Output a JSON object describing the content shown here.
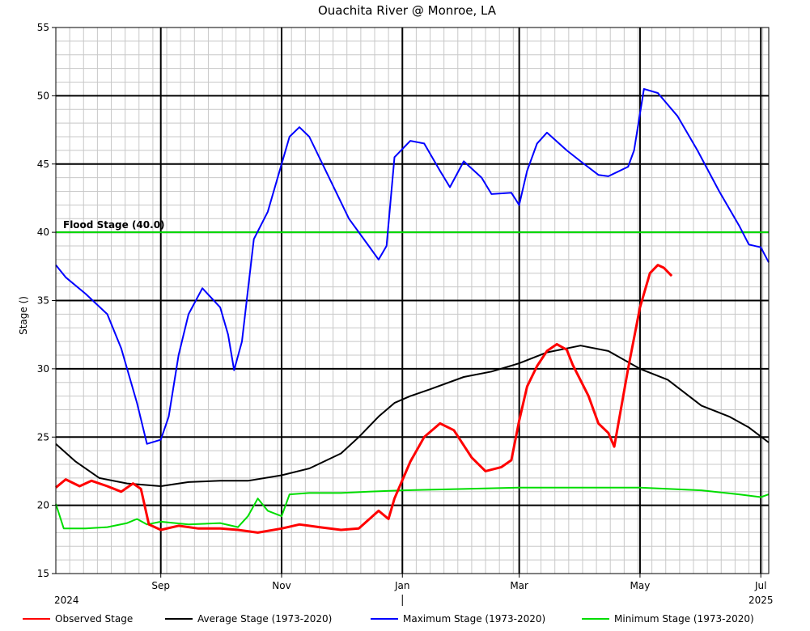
{
  "chart_data": {
    "type": "line",
    "title": "Ouachita River @ Monroe, LA",
    "ylabel": "Stage ()",
    "ylim": [
      15,
      55
    ],
    "yticks": [
      15,
      20,
      25,
      30,
      35,
      40,
      45,
      50,
      55
    ],
    "xlim": [
      "2024-07-10",
      "2025-07-05"
    ],
    "xticks": [
      {
        "date": "2024-09-01",
        "label": "Sep"
      },
      {
        "date": "2024-11-01",
        "label": "Nov"
      },
      {
        "date": "2025-01-01",
        "label": "Jan"
      },
      {
        "date": "2025-03-01",
        "label": "Mar"
      },
      {
        "date": "2025-05-01",
        "label": "May"
      },
      {
        "date": "2025-07-01",
        "label": "Jul"
      }
    ],
    "year_labels": [
      {
        "date": "2024-07-10",
        "label": "2024"
      },
      {
        "date": "2025-07-01",
        "label": "2025"
      }
    ],
    "reference_lines": [
      {
        "label": "Flood Stage (40.0)",
        "value": 40.0,
        "color": "#00dd00"
      }
    ],
    "series": [
      {
        "name": "Observed Stage",
        "color": "#ff0000",
        "points": [
          [
            "2024-07-10",
            21.3
          ],
          [
            "2024-07-15",
            21.9
          ],
          [
            "2024-07-22",
            21.4
          ],
          [
            "2024-07-28",
            21.8
          ],
          [
            "2024-08-05",
            21.4
          ],
          [
            "2024-08-12",
            21.0
          ],
          [
            "2024-08-18",
            21.6
          ],
          [
            "2024-08-22",
            21.2
          ],
          [
            "2024-08-26",
            18.6
          ],
          [
            "2024-09-01",
            18.2
          ],
          [
            "2024-09-10",
            18.5
          ],
          [
            "2024-09-20",
            18.3
          ],
          [
            "2024-10-01",
            18.3
          ],
          [
            "2024-10-10",
            18.2
          ],
          [
            "2024-10-20",
            18.0
          ],
          [
            "2024-11-01",
            18.3
          ],
          [
            "2024-11-10",
            18.6
          ],
          [
            "2024-11-20",
            18.4
          ],
          [
            "2024-12-01",
            18.2
          ],
          [
            "2024-12-10",
            18.3
          ],
          [
            "2024-12-20",
            19.6
          ],
          [
            "2024-12-25",
            19.0
          ],
          [
            "2024-12-28",
            20.5
          ],
          [
            "2025-01-05",
            23.2
          ],
          [
            "2025-01-12",
            25.0
          ],
          [
            "2025-01-20",
            26.0
          ],
          [
            "2025-01-27",
            25.5
          ],
          [
            "2025-02-05",
            23.5
          ],
          [
            "2025-02-12",
            22.5
          ],
          [
            "2025-02-20",
            22.8
          ],
          [
            "2025-02-25",
            23.3
          ],
          [
            "2025-03-01",
            26.2
          ],
          [
            "2025-03-05",
            28.7
          ],
          [
            "2025-03-10",
            30.2
          ],
          [
            "2025-03-15",
            31.3
          ],
          [
            "2025-03-20",
            31.8
          ],
          [
            "2025-03-25",
            31.4
          ],
          [
            "2025-03-28",
            30.3
          ],
          [
            "2025-04-05",
            28.0
          ],
          [
            "2025-04-10",
            26.0
          ],
          [
            "2025-04-15",
            25.3
          ],
          [
            "2025-04-18",
            24.3
          ],
          [
            "2025-04-25",
            30.0
          ],
          [
            "2025-05-01",
            34.5
          ],
          [
            "2025-05-06",
            37.0
          ],
          [
            "2025-05-10",
            37.6
          ],
          [
            "2025-05-13",
            37.4
          ],
          [
            "2025-05-17",
            36.8
          ]
        ]
      },
      {
        "name": "Average Stage (1973-2020)",
        "color": "#000000",
        "points": [
          [
            "2024-07-10",
            24.5
          ],
          [
            "2024-07-20",
            23.2
          ],
          [
            "2024-08-01",
            22.0
          ],
          [
            "2024-08-15",
            21.6
          ],
          [
            "2024-09-01",
            21.4
          ],
          [
            "2024-09-15",
            21.7
          ],
          [
            "2024-10-01",
            21.8
          ],
          [
            "2024-10-15",
            21.8
          ],
          [
            "2024-11-01",
            22.2
          ],
          [
            "2024-11-15",
            22.7
          ],
          [
            "2024-12-01",
            23.8
          ],
          [
            "2024-12-10",
            25.0
          ],
          [
            "2024-12-20",
            26.5
          ],
          [
            "2024-12-28",
            27.5
          ],
          [
            "2025-01-05",
            28.0
          ],
          [
            "2025-01-15",
            28.5
          ],
          [
            "2025-02-01",
            29.4
          ],
          [
            "2025-02-15",
            29.8
          ],
          [
            "2025-03-01",
            30.4
          ],
          [
            "2025-03-15",
            31.2
          ],
          [
            "2025-04-01",
            31.7
          ],
          [
            "2025-04-15",
            31.3
          ],
          [
            "2025-05-01",
            30.0
          ],
          [
            "2025-05-15",
            29.2
          ],
          [
            "2025-06-01",
            27.3
          ],
          [
            "2025-06-15",
            26.5
          ],
          [
            "2025-06-25",
            25.7
          ],
          [
            "2025-07-05",
            24.6
          ]
        ]
      },
      {
        "name": "Maximum Stage (1973-2020)",
        "color": "#0000ff",
        "points": [
          [
            "2024-07-10",
            37.6
          ],
          [
            "2024-07-15",
            36.7
          ],
          [
            "2024-07-25",
            35.5
          ],
          [
            "2024-08-05",
            34.0
          ],
          [
            "2024-08-12",
            31.5
          ],
          [
            "2024-08-20",
            27.5
          ],
          [
            "2024-08-25",
            24.5
          ],
          [
            "2024-09-01",
            24.8
          ],
          [
            "2024-09-05",
            26.5
          ],
          [
            "2024-09-10",
            31.0
          ],
          [
            "2024-09-15",
            34.0
          ],
          [
            "2024-09-22",
            35.9
          ],
          [
            "2024-10-01",
            34.5
          ],
          [
            "2024-10-05",
            32.5
          ],
          [
            "2024-10-08",
            29.9
          ],
          [
            "2024-10-12",
            32.0
          ],
          [
            "2024-10-18",
            39.5
          ],
          [
            "2024-10-25",
            41.5
          ],
          [
            "2024-11-01",
            45.0
          ],
          [
            "2024-11-05",
            47.0
          ],
          [
            "2024-11-10",
            47.7
          ],
          [
            "2024-11-15",
            47.0
          ],
          [
            "2024-11-25",
            44.0
          ],
          [
            "2024-12-05",
            41.0
          ],
          [
            "2024-12-15",
            39.0
          ],
          [
            "2024-12-20",
            38.0
          ],
          [
            "2024-12-24",
            39.0
          ],
          [
            "2024-12-28",
            45.5
          ],
          [
            "2025-01-05",
            46.7
          ],
          [
            "2025-01-12",
            46.5
          ],
          [
            "2025-01-20",
            44.5
          ],
          [
            "2025-01-25",
            43.3
          ],
          [
            "2025-02-01",
            45.2
          ],
          [
            "2025-02-10",
            44.0
          ],
          [
            "2025-02-15",
            42.8
          ],
          [
            "2025-02-25",
            42.9
          ],
          [
            "2025-03-01",
            42.0
          ],
          [
            "2025-03-05",
            44.5
          ],
          [
            "2025-03-10",
            46.5
          ],
          [
            "2025-03-15",
            47.3
          ],
          [
            "2025-03-25",
            46.0
          ],
          [
            "2025-04-01",
            45.2
          ],
          [
            "2025-04-10",
            44.2
          ],
          [
            "2025-04-15",
            44.1
          ],
          [
            "2025-04-25",
            44.8
          ],
          [
            "2025-04-28",
            46.0
          ],
          [
            "2025-05-03",
            50.5
          ],
          [
            "2025-05-10",
            50.2
          ],
          [
            "2025-05-20",
            48.5
          ],
          [
            "2025-05-30",
            46.0
          ],
          [
            "2025-06-10",
            43.0
          ],
          [
            "2025-06-20",
            40.5
          ],
          [
            "2025-06-25",
            39.1
          ],
          [
            "2025-07-01",
            38.9
          ],
          [
            "2025-07-05",
            37.8
          ]
        ]
      },
      {
        "name": "Minimum Stage (1973-2020)",
        "color": "#00dd00",
        "points": [
          [
            "2024-07-10",
            20.1
          ],
          [
            "2024-07-14",
            18.3
          ],
          [
            "2024-07-25",
            18.3
          ],
          [
            "2024-08-05",
            18.4
          ],
          [
            "2024-08-15",
            18.7
          ],
          [
            "2024-08-20",
            19.0
          ],
          [
            "2024-08-25",
            18.6
          ],
          [
            "2024-09-01",
            18.8
          ],
          [
            "2024-09-15",
            18.6
          ],
          [
            "2024-10-01",
            18.7
          ],
          [
            "2024-10-10",
            18.4
          ],
          [
            "2024-10-15",
            19.2
          ],
          [
            "2024-10-20",
            20.5
          ],
          [
            "2024-10-25",
            19.6
          ],
          [
            "2024-11-01",
            19.2
          ],
          [
            "2024-11-05",
            20.8
          ],
          [
            "2024-11-15",
            20.9
          ],
          [
            "2024-12-01",
            20.9
          ],
          [
            "2024-12-15",
            21.0
          ],
          [
            "2025-01-01",
            21.1
          ],
          [
            "2025-02-01",
            21.2
          ],
          [
            "2025-03-01",
            21.3
          ],
          [
            "2025-04-01",
            21.3
          ],
          [
            "2025-05-01",
            21.3
          ],
          [
            "2025-06-01",
            21.1
          ],
          [
            "2025-06-20",
            20.8
          ],
          [
            "2025-07-01",
            20.6
          ],
          [
            "2025-07-05",
            20.8
          ]
        ]
      }
    ]
  }
}
